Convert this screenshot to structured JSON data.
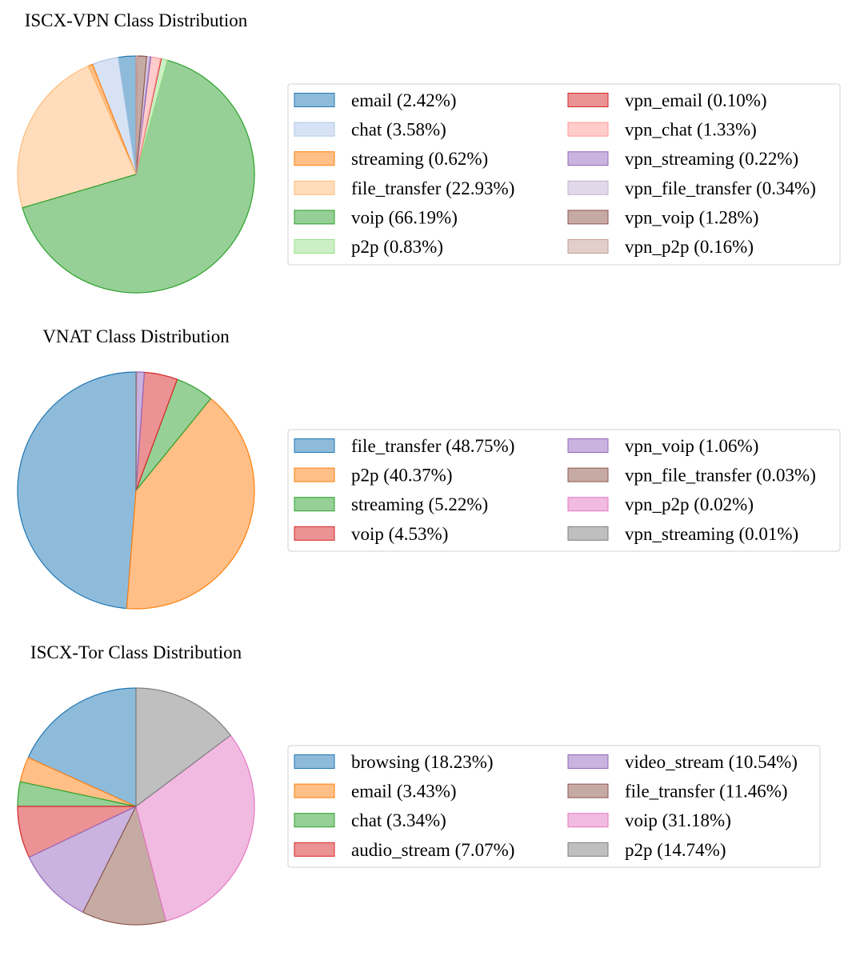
{
  "chart_data": [
    {
      "type": "pie",
      "title": "ISCX-VPN Class Distribution",
      "labels": [
        "email",
        "chat",
        "streaming",
        "file_transfer",
        "voip",
        "p2p",
        "vpn_email",
        "vpn_chat",
        "vpn_streaming",
        "vpn_file_transfer",
        "vpn_voip",
        "vpn_p2p"
      ],
      "values": [
        2.42,
        3.58,
        0.62,
        22.93,
        66.19,
        0.83,
        0.1,
        1.33,
        0.22,
        0.34,
        1.28,
        0.16
      ],
      "legend_entries": [
        "email (2.42%)",
        "chat (3.58%)",
        "streaming (0.62%)",
        "file_transfer (22.93%)",
        "voip (66.19%)",
        "p2p (0.83%)",
        "vpn_email (0.10%)",
        "vpn_chat (1.33%)",
        "vpn_streaming (0.22%)",
        "vpn_file_transfer (0.34%)",
        "vpn_voip (1.28%)",
        "vpn_p2p (0.16%)"
      ],
      "colors": [
        "#1f77b4",
        "#aec7e8",
        "#ff7f0e",
        "#ffbb78",
        "#2ca02c",
        "#98df8a",
        "#d62728",
        "#ff9896",
        "#9467bd",
        "#c5b0d5",
        "#8c564b",
        "#c49c94"
      ],
      "start_angle_deg": 90,
      "direction": "counterclockwise",
      "legend_placement": "right",
      "legend_columns": 2
    },
    {
      "type": "pie",
      "title": "VNAT Class Distribution",
      "labels": [
        "file_transfer",
        "p2p",
        "streaming",
        "voip",
        "vpn_voip",
        "vpn_file_transfer",
        "vpn_p2p",
        "vpn_streaming"
      ],
      "values": [
        48.75,
        40.37,
        5.22,
        4.53,
        1.06,
        0.03,
        0.02,
        0.01
      ],
      "legend_entries": [
        "file_transfer (48.75%)",
        "p2p (40.37%)",
        "streaming (5.22%)",
        "voip (4.53%)",
        "vpn_voip (1.06%)",
        "vpn_file_transfer (0.03%)",
        "vpn_p2p (0.02%)",
        "vpn_streaming (0.01%)"
      ],
      "colors": [
        "#1f77b4",
        "#ff7f0e",
        "#2ca02c",
        "#d62728",
        "#9467bd",
        "#8c564b",
        "#e377c2",
        "#7f7f7f"
      ],
      "start_angle_deg": 90,
      "direction": "counterclockwise",
      "legend_placement": "right",
      "legend_columns": 2
    },
    {
      "type": "pie",
      "title": "ISCX-Tor Class Distribution",
      "labels": [
        "browsing",
        "email",
        "chat",
        "audio_stream",
        "video_stream",
        "file_transfer",
        "voip",
        "p2p"
      ],
      "values": [
        18.23,
        3.43,
        3.34,
        7.07,
        10.54,
        11.46,
        31.18,
        14.74
      ],
      "legend_entries": [
        "browsing (18.23%)",
        "email (3.43%)",
        "chat (3.34%)",
        "audio_stream (7.07%)",
        "video_stream (10.54%)",
        "file_transfer (11.46%)",
        "voip (31.18%)",
        "p2p (14.74%)"
      ],
      "colors": [
        "#1f77b4",
        "#ff7f0e",
        "#2ca02c",
        "#d62728",
        "#9467bd",
        "#8c564b",
        "#e377c2",
        "#7f7f7f"
      ],
      "start_angle_deg": 90,
      "direction": "counterclockwise",
      "legend_placement": "right",
      "legend_columns": 2
    }
  ]
}
